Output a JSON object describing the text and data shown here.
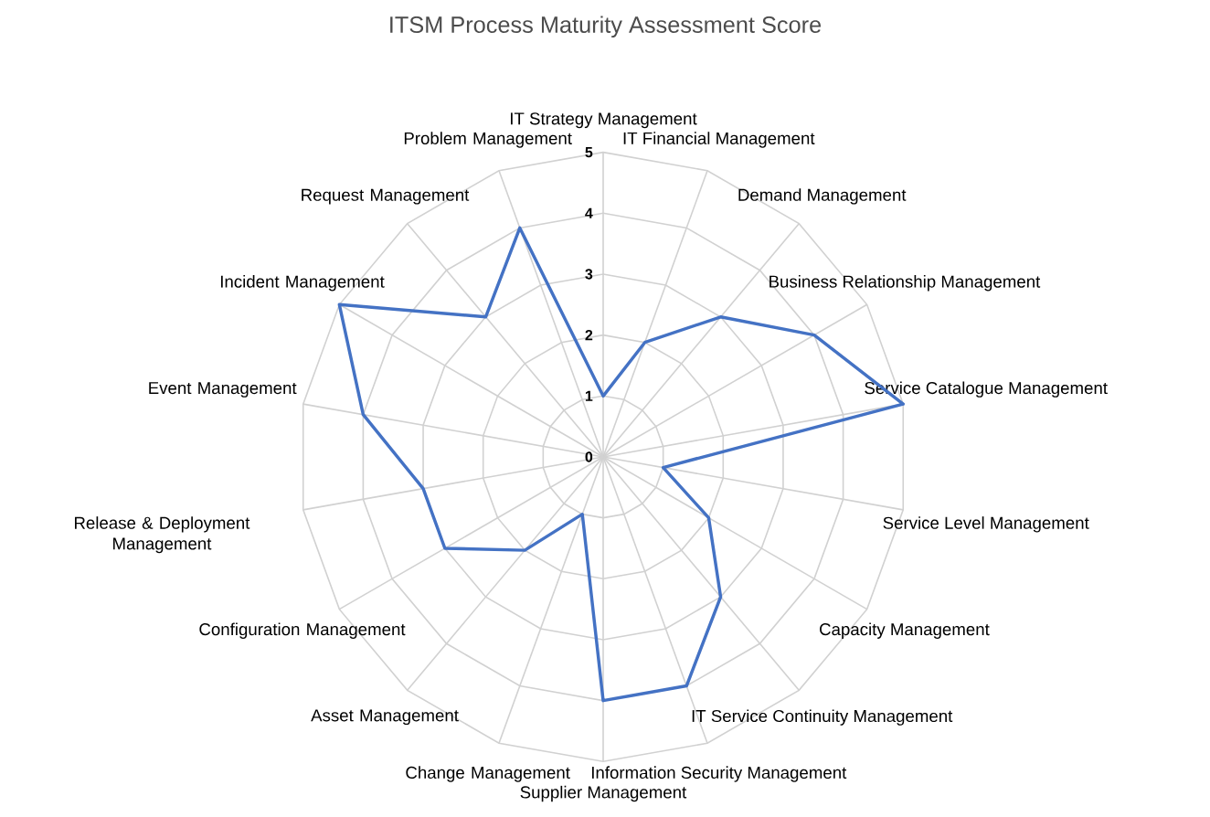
{
  "chart_data": {
    "type": "radar",
    "title": "ITSM Process Maturity Assessment Score",
    "categories": [
      "IT Strategy Management",
      "IT Financial Management",
      "Demand Management",
      "Business Relationship Management",
      "Service Catalogue Management",
      "Service Level Management",
      "Capacity Management",
      "IT Service Continuity Management",
      "Information Security Management",
      "Supplier Management",
      "Change Management",
      "Asset Management",
      "Configuration Management",
      "Release & Deployment Management",
      "Event Management",
      "Incident Management",
      "Request Management",
      "Problem Management"
    ],
    "series": [
      {
        "color": "#4472c4",
        "values": [
          1,
          2,
          3,
          4,
          5,
          1,
          2,
          3,
          4,
          4,
          1,
          2,
          3,
          3,
          4,
          5,
          3,
          4
        ]
      }
    ],
    "ylim": [
      0,
      5
    ],
    "yticks": [
      0,
      1,
      2,
      3,
      4,
      5
    ],
    "grid": true
  }
}
